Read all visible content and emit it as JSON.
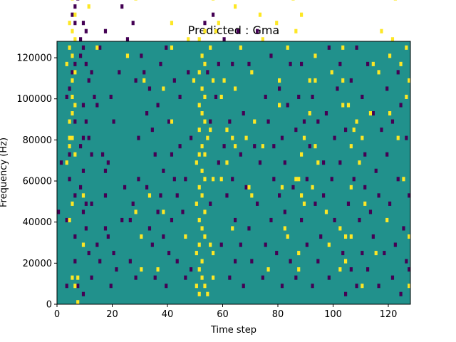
{
  "chart_data": {
    "type": "heatmap",
    "title": "Predicted : Gma",
    "xlabel": "Time step",
    "ylabel": "Frequency (Hz)",
    "xlim": [
      0,
      128
    ],
    "ylim": [
      0,
      128000
    ],
    "xticks": [
      0,
      20,
      40,
      60,
      80,
      100,
      120
    ],
    "yticks": [
      0,
      20000,
      40000,
      60000,
      80000,
      100000,
      120000
    ],
    "grid": false,
    "legend": "none",
    "colors": {
      "background": "#21918c",
      "low": "#440154",
      "high": "#fde725"
    },
    "n_time_steps": 128,
    "n_frequency_bins": 64,
    "bin_height_hz": 2000,
    "cells_high": [
      [
        1,
        100
      ],
      [
        2,
        84
      ],
      [
        3,
        110
      ],
      [
        3,
        58
      ],
      [
        3,
        34
      ],
      [
        4,
        68
      ],
      [
        4,
        62
      ],
      [
        4,
        44
      ],
      [
        4,
        40
      ],
      [
        4,
        38
      ],
      [
        4,
        20
      ],
      [
        5,
        88
      ],
      [
        5,
        84
      ],
      [
        5,
        80
      ],
      [
        5,
        74
      ],
      [
        5,
        66
      ],
      [
        5,
        60
      ],
      [
        5,
        54
      ],
      [
        5,
        50
      ],
      [
        5,
        46
      ],
      [
        5,
        40
      ],
      [
        5,
        24
      ],
      [
        5,
        6
      ],
      [
        6,
        86
      ],
      [
        6,
        82
      ],
      [
        6,
        78
      ],
      [
        6,
        70
      ],
      [
        6,
        64
      ],
      [
        6,
        56
      ],
      [
        6,
        48
      ],
      [
        6,
        36
      ],
      [
        6,
        4
      ],
      [
        7,
        6
      ],
      [
        7,
        0
      ],
      [
        9,
        14
      ],
      [
        9,
        26
      ],
      [
        11,
        108
      ],
      [
        11,
        72
      ],
      [
        14,
        62
      ],
      [
        22,
        100
      ],
      [
        25,
        60
      ],
      [
        28,
        74
      ],
      [
        28,
        22
      ],
      [
        30,
        8
      ],
      [
        30,
        16
      ],
      [
        31,
        54
      ],
      [
        33,
        26
      ],
      [
        36,
        8
      ],
      [
        38,
        22
      ],
      [
        38,
        52
      ],
      [
        41,
        62
      ],
      [
        41,
        68
      ],
      [
        41,
        44
      ],
      [
        44,
        124
      ],
      [
        45,
        104
      ],
      [
        46,
        16
      ],
      [
        47,
        64
      ],
      [
        48,
        120
      ],
      [
        49,
        54
      ],
      [
        50,
        34
      ],
      [
        50,
        24
      ],
      [
        50,
        12
      ],
      [
        50,
        4
      ],
      [
        51,
        64
      ],
      [
        51,
        56
      ],
      [
        51,
        48
      ],
      [
        51,
        42
      ],
      [
        51,
        36
      ],
      [
        51,
        28
      ],
      [
        51,
        20
      ],
      [
        51,
        14
      ],
      [
        51,
        8
      ],
      [
        51,
        2
      ],
      [
        52,
        60
      ],
      [
        52,
        52
      ],
      [
        52,
        46
      ],
      [
        52,
        38
      ],
      [
        52,
        32
      ],
      [
        52,
        26
      ],
      [
        52,
        18
      ],
      [
        52,
        10
      ],
      [
        52,
        6
      ],
      [
        53,
        66
      ],
      [
        53,
        58
      ],
      [
        53,
        50
      ],
      [
        53,
        44
      ],
      [
        53,
        36
      ],
      [
        53,
        30
      ],
      [
        53,
        22
      ],
      [
        53,
        16
      ],
      [
        53,
        4
      ],
      [
        54,
        40
      ],
      [
        54,
        2
      ],
      [
        55,
        78
      ],
      [
        55,
        62
      ],
      [
        55,
        42
      ],
      [
        55,
        14
      ],
      [
        56,
        96
      ],
      [
        56,
        92
      ],
      [
        56,
        84
      ],
      [
        56,
        74
      ],
      [
        56,
        54
      ],
      [
        56,
        30
      ],
      [
        56,
        12
      ],
      [
        56,
        6
      ],
      [
        57,
        100
      ],
      [
        57,
        66
      ],
      [
        58,
        90
      ],
      [
        58,
        68
      ],
      [
        59,
        50
      ],
      [
        59,
        30
      ],
      [
        60,
        76
      ],
      [
        60,
        54
      ],
      [
        61,
        42
      ],
      [
        61,
        34
      ],
      [
        63,
        40
      ],
      [
        63,
        18
      ],
      [
        64,
        52
      ],
      [
        64,
        38
      ],
      [
        64,
        72
      ],
      [
        66,
        62
      ],
      [
        66,
        84
      ],
      [
        66,
        124
      ],
      [
        67,
        96
      ],
      [
        68,
        40
      ],
      [
        69,
        28
      ],
      [
        70,
        26
      ],
      [
        70,
        56
      ],
      [
        71,
        44
      ],
      [
        72,
        80
      ],
      [
        73,
        70
      ],
      [
        74,
        64
      ],
      [
        74,
        104
      ],
      [
        74,
        38
      ],
      [
        75,
        78
      ],
      [
        75,
        94
      ],
      [
        76,
        8
      ],
      [
        77,
        84
      ],
      [
        78,
        104
      ],
      [
        79,
        82
      ],
      [
        79,
        68
      ],
      [
        80,
        54
      ],
      [
        80,
        48
      ],
      [
        81,
        28
      ],
      [
        82,
        18
      ],
      [
        83,
        16
      ],
      [
        83,
        62
      ],
      [
        84,
        98
      ],
      [
        85,
        74
      ],
      [
        86,
        66
      ],
      [
        86,
        30
      ],
      [
        87,
        30
      ],
      [
        87,
        8
      ],
      [
        87,
        12
      ],
      [
        88,
        36
      ],
      [
        88,
        70
      ],
      [
        88,
        26
      ],
      [
        89,
        40
      ],
      [
        89,
        24
      ],
      [
        89,
        106
      ],
      [
        90,
        88
      ],
      [
        91,
        120
      ],
      [
        91,
        46
      ],
      [
        91,
        54
      ],
      [
        92,
        28
      ],
      [
        93,
        38
      ],
      [
        93,
        60
      ],
      [
        93,
        54
      ],
      [
        94,
        34
      ],
      [
        94,
        92
      ],
      [
        95,
        108
      ],
      [
        96,
        100
      ],
      [
        97,
        22
      ],
      [
        98,
        14
      ],
      [
        99,
        56
      ],
      [
        100,
        110
      ],
      [
        101,
        100
      ],
      [
        102,
        18
      ],
      [
        102,
        8
      ],
      [
        103,
        54
      ],
      [
        103,
        48
      ],
      [
        103,
        62
      ],
      [
        104,
        124
      ],
      [
        104,
        16
      ],
      [
        104,
        10
      ],
      [
        105,
        48
      ],
      [
        106,
        38
      ],
      [
        106,
        28
      ],
      [
        106,
        16
      ],
      [
        107,
        42
      ],
      [
        108,
        44
      ],
      [
        109,
        34
      ],
      [
        110,
        40
      ],
      [
        110,
        4
      ],
      [
        111,
        24
      ],
      [
        112,
        76
      ],
      [
        113,
        46
      ],
      [
        114,
        58
      ],
      [
        115,
        104
      ],
      [
        115,
        12
      ],
      [
        116,
        56
      ],
      [
        117,
        66
      ],
      [
        118,
        106
      ],
      [
        119,
        20
      ],
      [
        120,
        46
      ],
      [
        120,
        60
      ],
      [
        121,
        64
      ],
      [
        122,
        74
      ],
      [
        123,
        40
      ],
      [
        124,
        78
      ],
      [
        124,
        58
      ],
      [
        125,
        30
      ],
      [
        126,
        62
      ],
      [
        126,
        50
      ],
      [
        126,
        82
      ],
      [
        127,
        54
      ],
      [
        127,
        16
      ],
      [
        127,
        4
      ]
    ],
    "cells_low": [
      [
        0,
        118
      ],
      [
        0,
        22
      ],
      [
        1,
        90
      ],
      [
        1,
        34
      ],
      [
        2,
        92
      ],
      [
        2,
        76
      ],
      [
        3,
        116
      ],
      [
        3,
        4
      ],
      [
        3,
        50
      ],
      [
        3,
        20
      ],
      [
        4,
        86
      ],
      [
        4,
        52
      ],
      [
        4,
        36
      ],
      [
        4,
        30
      ],
      [
        5,
        70
      ],
      [
        5,
        56
      ],
      [
        6,
        80
      ],
      [
        6,
        72
      ],
      [
        6,
        68
      ],
      [
        6,
        58
      ],
      [
        6,
        44
      ],
      [
        6,
        26
      ],
      [
        6,
        16
      ],
      [
        6,
        10
      ],
      [
        7,
        4
      ],
      [
        7,
        86
      ],
      [
        7,
        74
      ],
      [
        8,
        60
      ],
      [
        8,
        64
      ],
      [
        8,
        38
      ],
      [
        8,
        28
      ],
      [
        9,
        68
      ],
      [
        9,
        62
      ],
      [
        9,
        76
      ],
      [
        9,
        48
      ],
      [
        9,
        40
      ],
      [
        9,
        32
      ],
      [
        9,
        22
      ],
      [
        9,
        2
      ],
      [
        10,
        66
      ],
      [
        10,
        58
      ],
      [
        10,
        44
      ],
      [
        10,
        24
      ],
      [
        10,
        18
      ],
      [
        11,
        78
      ],
      [
        11,
        54
      ],
      [
        11,
        40
      ],
      [
        11,
        12
      ],
      [
        12,
        56
      ],
      [
        12,
        36
      ],
      [
        12,
        24
      ],
      [
        12,
        6
      ],
      [
        13,
        88
      ],
      [
        13,
        50
      ],
      [
        14,
        48
      ],
      [
        14,
        14
      ],
      [
        15,
        62
      ],
      [
        15,
        10
      ],
      [
        16,
        36
      ],
      [
        17,
        32
      ],
      [
        17,
        66
      ],
      [
        17,
        26
      ],
      [
        17,
        18
      ],
      [
        17,
        84
      ],
      [
        18,
        34
      ],
      [
        18,
        16
      ],
      [
        19,
        50
      ],
      [
        19,
        4
      ],
      [
        20,
        12
      ],
      [
        20,
        44
      ],
      [
        21,
        8
      ],
      [
        22,
        76
      ],
      [
        22,
        56
      ],
      [
        23,
        72
      ],
      [
        23,
        20
      ],
      [
        24,
        28
      ],
      [
        25,
        80
      ],
      [
        25,
        84
      ],
      [
        25,
        64
      ],
      [
        26,
        10
      ],
      [
        26,
        20
      ],
      [
        27,
        68
      ],
      [
        27,
        24
      ],
      [
        28,
        54
      ],
      [
        28,
        6
      ],
      [
        29,
        40
      ],
      [
        29,
        30
      ],
      [
        30,
        60
      ],
      [
        31,
        56
      ],
      [
        32,
        46
      ],
      [
        32,
        28
      ],
      [
        33,
        52
      ],
      [
        33,
        18
      ],
      [
        34,
        42
      ],
      [
        34,
        14
      ],
      [
        35,
        36
      ],
      [
        35,
        6
      ],
      [
        36,
        48
      ],
      [
        36,
        22
      ],
      [
        37,
        58
      ],
      [
        37,
        26
      ],
      [
        38,
        32
      ],
      [
        38,
        16
      ],
      [
        39,
        62
      ],
      [
        39,
        4
      ],
      [
        40,
        44
      ],
      [
        40,
        12
      ],
      [
        41,
        36
      ],
      [
        41,
        20
      ],
      [
        42,
        54
      ],
      [
        42,
        30
      ],
      [
        43,
        10
      ],
      [
        43,
        26
      ],
      [
        44,
        50
      ],
      [
        44,
        38
      ],
      [
        45,
        22
      ],
      [
        46,
        6
      ],
      [
        46,
        30
      ],
      [
        47,
        56
      ],
      [
        48,
        8
      ],
      [
        48,
        40
      ],
      [
        53,
        68
      ],
      [
        54,
        56
      ],
      [
        55,
        44
      ],
      [
        55,
        24
      ],
      [
        56,
        70
      ],
      [
        57,
        50
      ],
      [
        58,
        34
      ],
      [
        58,
        58
      ],
      [
        59,
        14
      ],
      [
        60,
        64
      ],
      [
        60,
        38
      ],
      [
        61,
        26
      ],
      [
        62,
        6
      ],
      [
        62,
        44
      ],
      [
        63,
        58
      ],
      [
        63,
        30
      ],
      [
        64,
        20
      ],
      [
        64,
        10
      ],
      [
        65,
        66
      ],
      [
        66,
        36
      ],
      [
        66,
        14
      ],
      [
        67,
        4
      ],
      [
        67,
        46
      ],
      [
        68,
        28
      ],
      [
        69,
        58
      ],
      [
        69,
        18
      ],
      [
        70,
        10
      ],
      [
        71,
        38
      ],
      [
        72,
        24
      ],
      [
        72,
        66
      ],
      [
        73,
        34
      ],
      [
        74,
        6
      ],
      [
        75,
        50
      ],
      [
        75,
        14
      ],
      [
        76,
        44
      ],
      [
        77,
        60
      ],
      [
        77,
        20
      ],
      [
        78,
        30
      ],
      [
        78,
        38
      ],
      [
        79,
        12
      ],
      [
        80,
        52
      ],
      [
        80,
        26
      ],
      [
        81,
        40
      ],
      [
        81,
        4
      ],
      [
        82,
        34
      ],
      [
        82,
        22
      ],
      [
        83,
        48
      ],
      [
        84,
        10
      ],
      [
        84,
        58
      ],
      [
        85,
        28
      ],
      [
        86,
        42
      ],
      [
        86,
        6
      ],
      [
        87,
        50
      ],
      [
        88,
        20
      ],
      [
        88,
        58
      ],
      [
        89,
        44
      ],
      [
        90,
        14
      ],
      [
        90,
        30
      ],
      [
        91,
        38
      ],
      [
        92,
        4
      ],
      [
        92,
        50
      ],
      [
        93,
        24
      ],
      [
        94,
        44
      ],
      [
        94,
        10
      ],
      [
        95,
        16
      ],
      [
        96,
        26
      ],
      [
        96,
        34
      ],
      [
        97,
        46
      ],
      [
        98,
        6
      ],
      [
        98,
        62
      ],
      [
        99,
        30
      ],
      [
        100,
        40
      ],
      [
        100,
        20
      ],
      [
        101,
        52
      ],
      [
        102,
        34
      ],
      [
        102,
        58
      ],
      [
        103,
        12
      ],
      [
        104,
        42
      ],
      [
        104,
        2
      ],
      [
        105,
        24
      ],
      [
        106,
        54
      ],
      [
        106,
        8
      ],
      [
        107,
        30
      ],
      [
        108,
        62
      ],
      [
        108,
        4
      ],
      [
        109,
        20
      ],
      [
        110,
        50
      ],
      [
        110,
        12
      ],
      [
        111,
        36
      ],
      [
        111,
        28
      ],
      [
        112,
        8
      ],
      [
        112,
        58
      ],
      [
        113,
        22
      ],
      [
        114,
        46
      ],
      [
        114,
        16
      ],
      [
        115,
        32
      ],
      [
        116,
        4
      ],
      [
        116,
        26
      ],
      [
        117,
        42
      ],
      [
        118,
        12
      ],
      [
        119,
        52
      ],
      [
        119,
        36
      ],
      [
        120,
        24
      ],
      [
        121,
        6
      ],
      [
        121,
        44
      ],
      [
        122,
        14
      ],
      [
        123,
        56
      ],
      [
        123,
        30
      ],
      [
        124,
        2
      ],
      [
        124,
        48
      ],
      [
        125,
        18
      ],
      [
        126,
        40
      ],
      [
        126,
        10
      ],
      [
        127,
        26
      ],
      [
        127,
        8
      ]
    ]
  }
}
